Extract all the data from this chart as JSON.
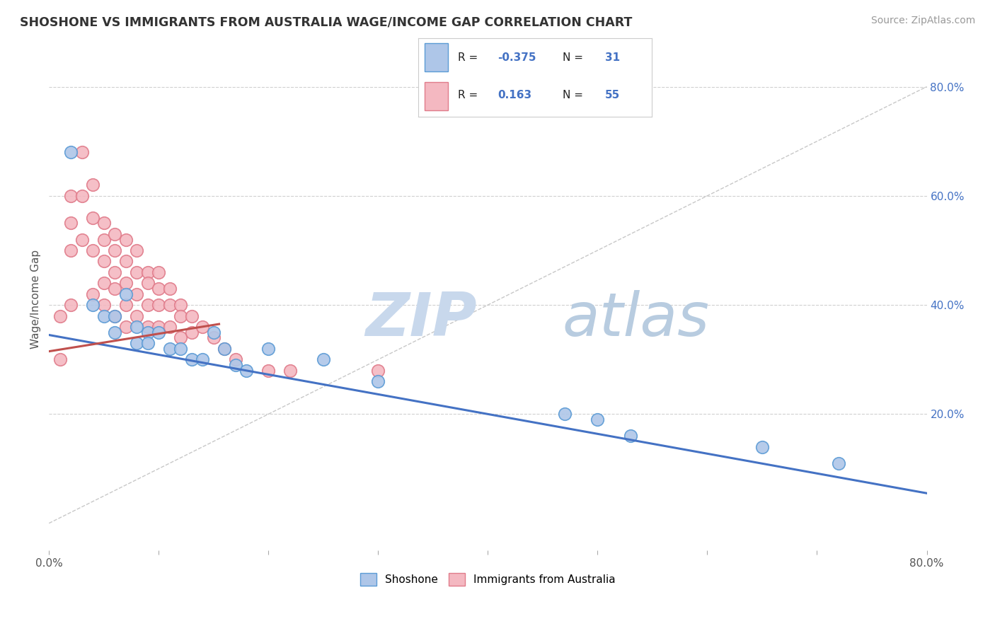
{
  "title": "SHOSHONE VS IMMIGRANTS FROM AUSTRALIA WAGE/INCOME GAP CORRELATION CHART",
  "source_text": "Source: ZipAtlas.com",
  "ylabel": "Wage/Income Gap",
  "xlim": [
    0.0,
    0.8
  ],
  "ylim": [
    -0.05,
    0.87
  ],
  "x_ticks": [
    0.0,
    0.1,
    0.2,
    0.3,
    0.4,
    0.5,
    0.6,
    0.7,
    0.8
  ],
  "x_tick_labels": [
    "0.0%",
    "",
    "",
    "",
    "",
    "",
    "",
    "",
    "80.0%"
  ],
  "y_ticks_right": [
    0.2,
    0.4,
    0.6,
    0.8
  ],
  "y_tick_labels_right": [
    "20.0%",
    "40.0%",
    "60.0%",
    "80.0%"
  ],
  "shoshone_color": "#aec6e8",
  "shoshone_edge": "#5b9bd5",
  "australia_color": "#f4b8c1",
  "australia_edge": "#e07b8a",
  "trend_blue_color": "#4472c4",
  "trend_pink_color": "#c0504d",
  "ref_line_color": "#c8c8c8",
  "watermark_color_zip": "#c8d8ec",
  "watermark_color_atlas": "#b8cce0",
  "background": "#ffffff",
  "shoshone_x": [
    0.02,
    0.04,
    0.05,
    0.06,
    0.06,
    0.07,
    0.08,
    0.08,
    0.09,
    0.09,
    0.1,
    0.11,
    0.12,
    0.13,
    0.14,
    0.15,
    0.16,
    0.17,
    0.18,
    0.2,
    0.25,
    0.3,
    0.47,
    0.5,
    0.53,
    0.65,
    0.72
  ],
  "shoshone_y": [
    0.68,
    0.4,
    0.38,
    0.38,
    0.35,
    0.42,
    0.36,
    0.33,
    0.35,
    0.33,
    0.35,
    0.32,
    0.32,
    0.3,
    0.3,
    0.35,
    0.32,
    0.29,
    0.28,
    0.32,
    0.3,
    0.26,
    0.2,
    0.19,
    0.16,
    0.14,
    0.11
  ],
  "australia_x": [
    0.01,
    0.01,
    0.02,
    0.02,
    0.02,
    0.02,
    0.03,
    0.03,
    0.03,
    0.04,
    0.04,
    0.04,
    0.04,
    0.05,
    0.05,
    0.05,
    0.05,
    0.05,
    0.06,
    0.06,
    0.06,
    0.06,
    0.06,
    0.07,
    0.07,
    0.07,
    0.07,
    0.07,
    0.08,
    0.08,
    0.08,
    0.08,
    0.09,
    0.09,
    0.09,
    0.09,
    0.1,
    0.1,
    0.1,
    0.1,
    0.11,
    0.11,
    0.11,
    0.12,
    0.12,
    0.12,
    0.13,
    0.13,
    0.14,
    0.15,
    0.16,
    0.17,
    0.2,
    0.22,
    0.3
  ],
  "australia_y": [
    0.38,
    0.3,
    0.6,
    0.55,
    0.5,
    0.4,
    0.68,
    0.6,
    0.52,
    0.62,
    0.56,
    0.5,
    0.42,
    0.55,
    0.52,
    0.48,
    0.44,
    0.4,
    0.53,
    0.5,
    0.46,
    0.43,
    0.38,
    0.52,
    0.48,
    0.44,
    0.4,
    0.36,
    0.5,
    0.46,
    0.42,
    0.38,
    0.46,
    0.44,
    0.4,
    0.36,
    0.46,
    0.43,
    0.4,
    0.36,
    0.43,
    0.4,
    0.36,
    0.4,
    0.38,
    0.34,
    0.38,
    0.35,
    0.36,
    0.34,
    0.32,
    0.3,
    0.28,
    0.28,
    0.28
  ],
  "trend_blue_x0": 0.0,
  "trend_blue_y0": 0.345,
  "trend_blue_x1": 0.8,
  "trend_blue_y1": 0.055,
  "trend_pink_x0": 0.0,
  "trend_pink_y0": 0.315,
  "trend_pink_x1": 0.155,
  "trend_pink_y1": 0.365
}
